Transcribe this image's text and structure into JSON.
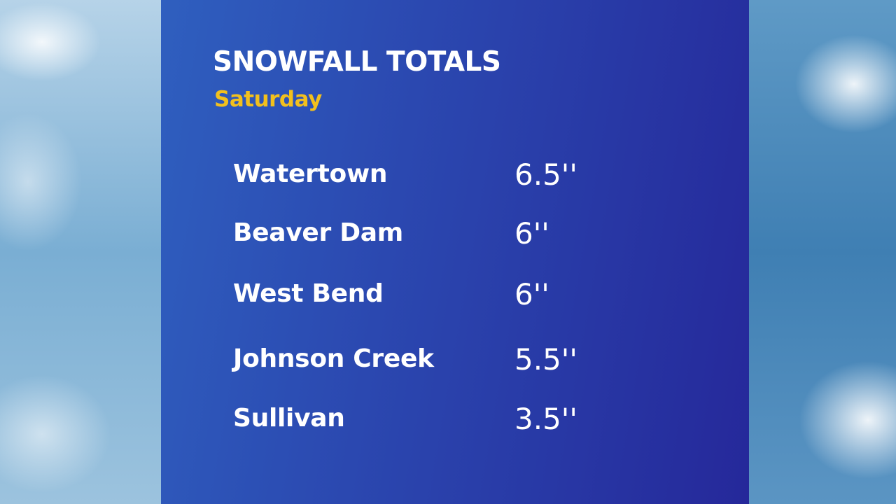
{
  "title": "SNOWFALL TOTALS",
  "subtitle": "Saturday",
  "colors": {
    "panel": "#2b48b0",
    "title": "#ffffff",
    "subtitle": "#f2c01d"
  },
  "rows": [
    {
      "location": "Watertown",
      "amount": "6.5''"
    },
    {
      "location": "Beaver Dam",
      "amount": "6''"
    },
    {
      "location": "West Bend",
      "amount": "6''"
    },
    {
      "location": "Johnson Creek",
      "amount": "5.5''"
    },
    {
      "location": "Sullivan",
      "amount": "3.5''"
    }
  ]
}
